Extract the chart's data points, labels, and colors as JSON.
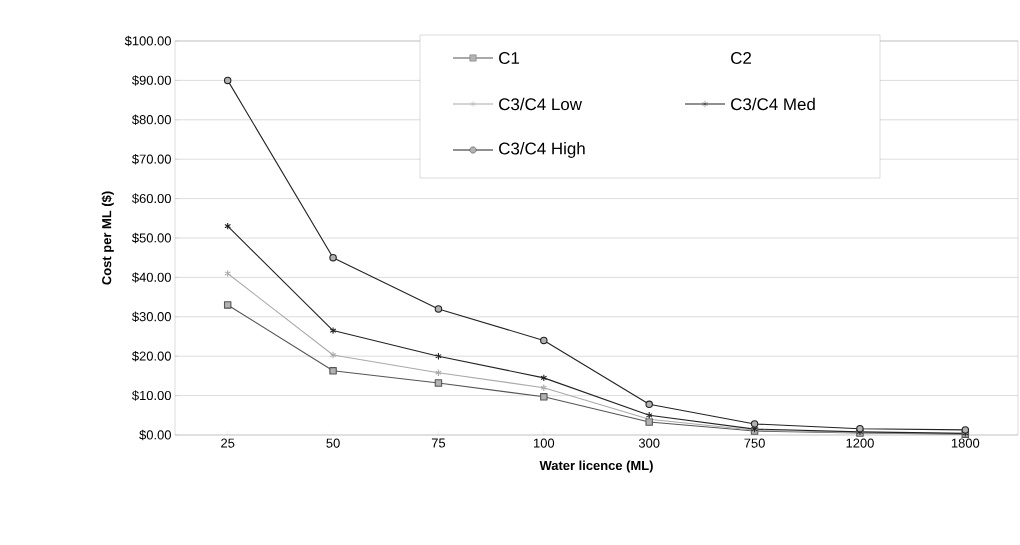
{
  "chart_data": {
    "type": "line",
    "xlabel": "Water licence (ML)",
    "ylabel": "Cost per ML ($)",
    "categories": [
      "25",
      "50",
      "75",
      "100",
      "300",
      "750",
      "1200",
      "1800"
    ],
    "ylim": [
      0,
      100
    ],
    "yticks": [
      {
        "value": 0,
        "label": "$0.00"
      },
      {
        "value": 10,
        "label": "$10.00"
      },
      {
        "value": 20,
        "label": "$20.00"
      },
      {
        "value": 30,
        "label": "$30.00"
      },
      {
        "value": 40,
        "label": "$40.00"
      },
      {
        "value": 50,
        "label": "$50.00"
      },
      {
        "value": 60,
        "label": "$60.00"
      },
      {
        "value": 70,
        "label": "$70.00"
      },
      {
        "value": 80,
        "label": "$80.00"
      },
      {
        "value": 90,
        "label": "$90.00"
      },
      {
        "value": 100,
        "label": "$100.00"
      }
    ],
    "grid": "y",
    "legend": "top right",
    "series": [
      {
        "name": "C1",
        "color": "#555555",
        "marker": "square",
        "values": [
          33,
          16.3,
          13.2,
          9.7,
          3.3,
          1.0,
          0.5,
          0.2
        ]
      },
      {
        "name": "C2",
        "values": [
          null,
          null,
          null,
          null,
          null,
          null,
          null,
          null
        ]
      },
      {
        "name": "C3/C4 Low",
        "color": "#aaaaaa",
        "marker": "cross",
        "values": [
          41,
          20.3,
          15.8,
          12,
          4,
          1.2,
          0.6,
          0.3
        ]
      },
      {
        "name": "C3/C4 Med",
        "color": "#222222",
        "marker": "cross",
        "values": [
          53,
          26.5,
          20,
          14.5,
          5,
          1.5,
          0.8,
          0.4
        ]
      },
      {
        "name": "C3/C4 High",
        "color": "#222222",
        "marker": "circle",
        "values": [
          90,
          45,
          32,
          24,
          7.8,
          2.8,
          1.6,
          1.3
        ]
      }
    ]
  }
}
